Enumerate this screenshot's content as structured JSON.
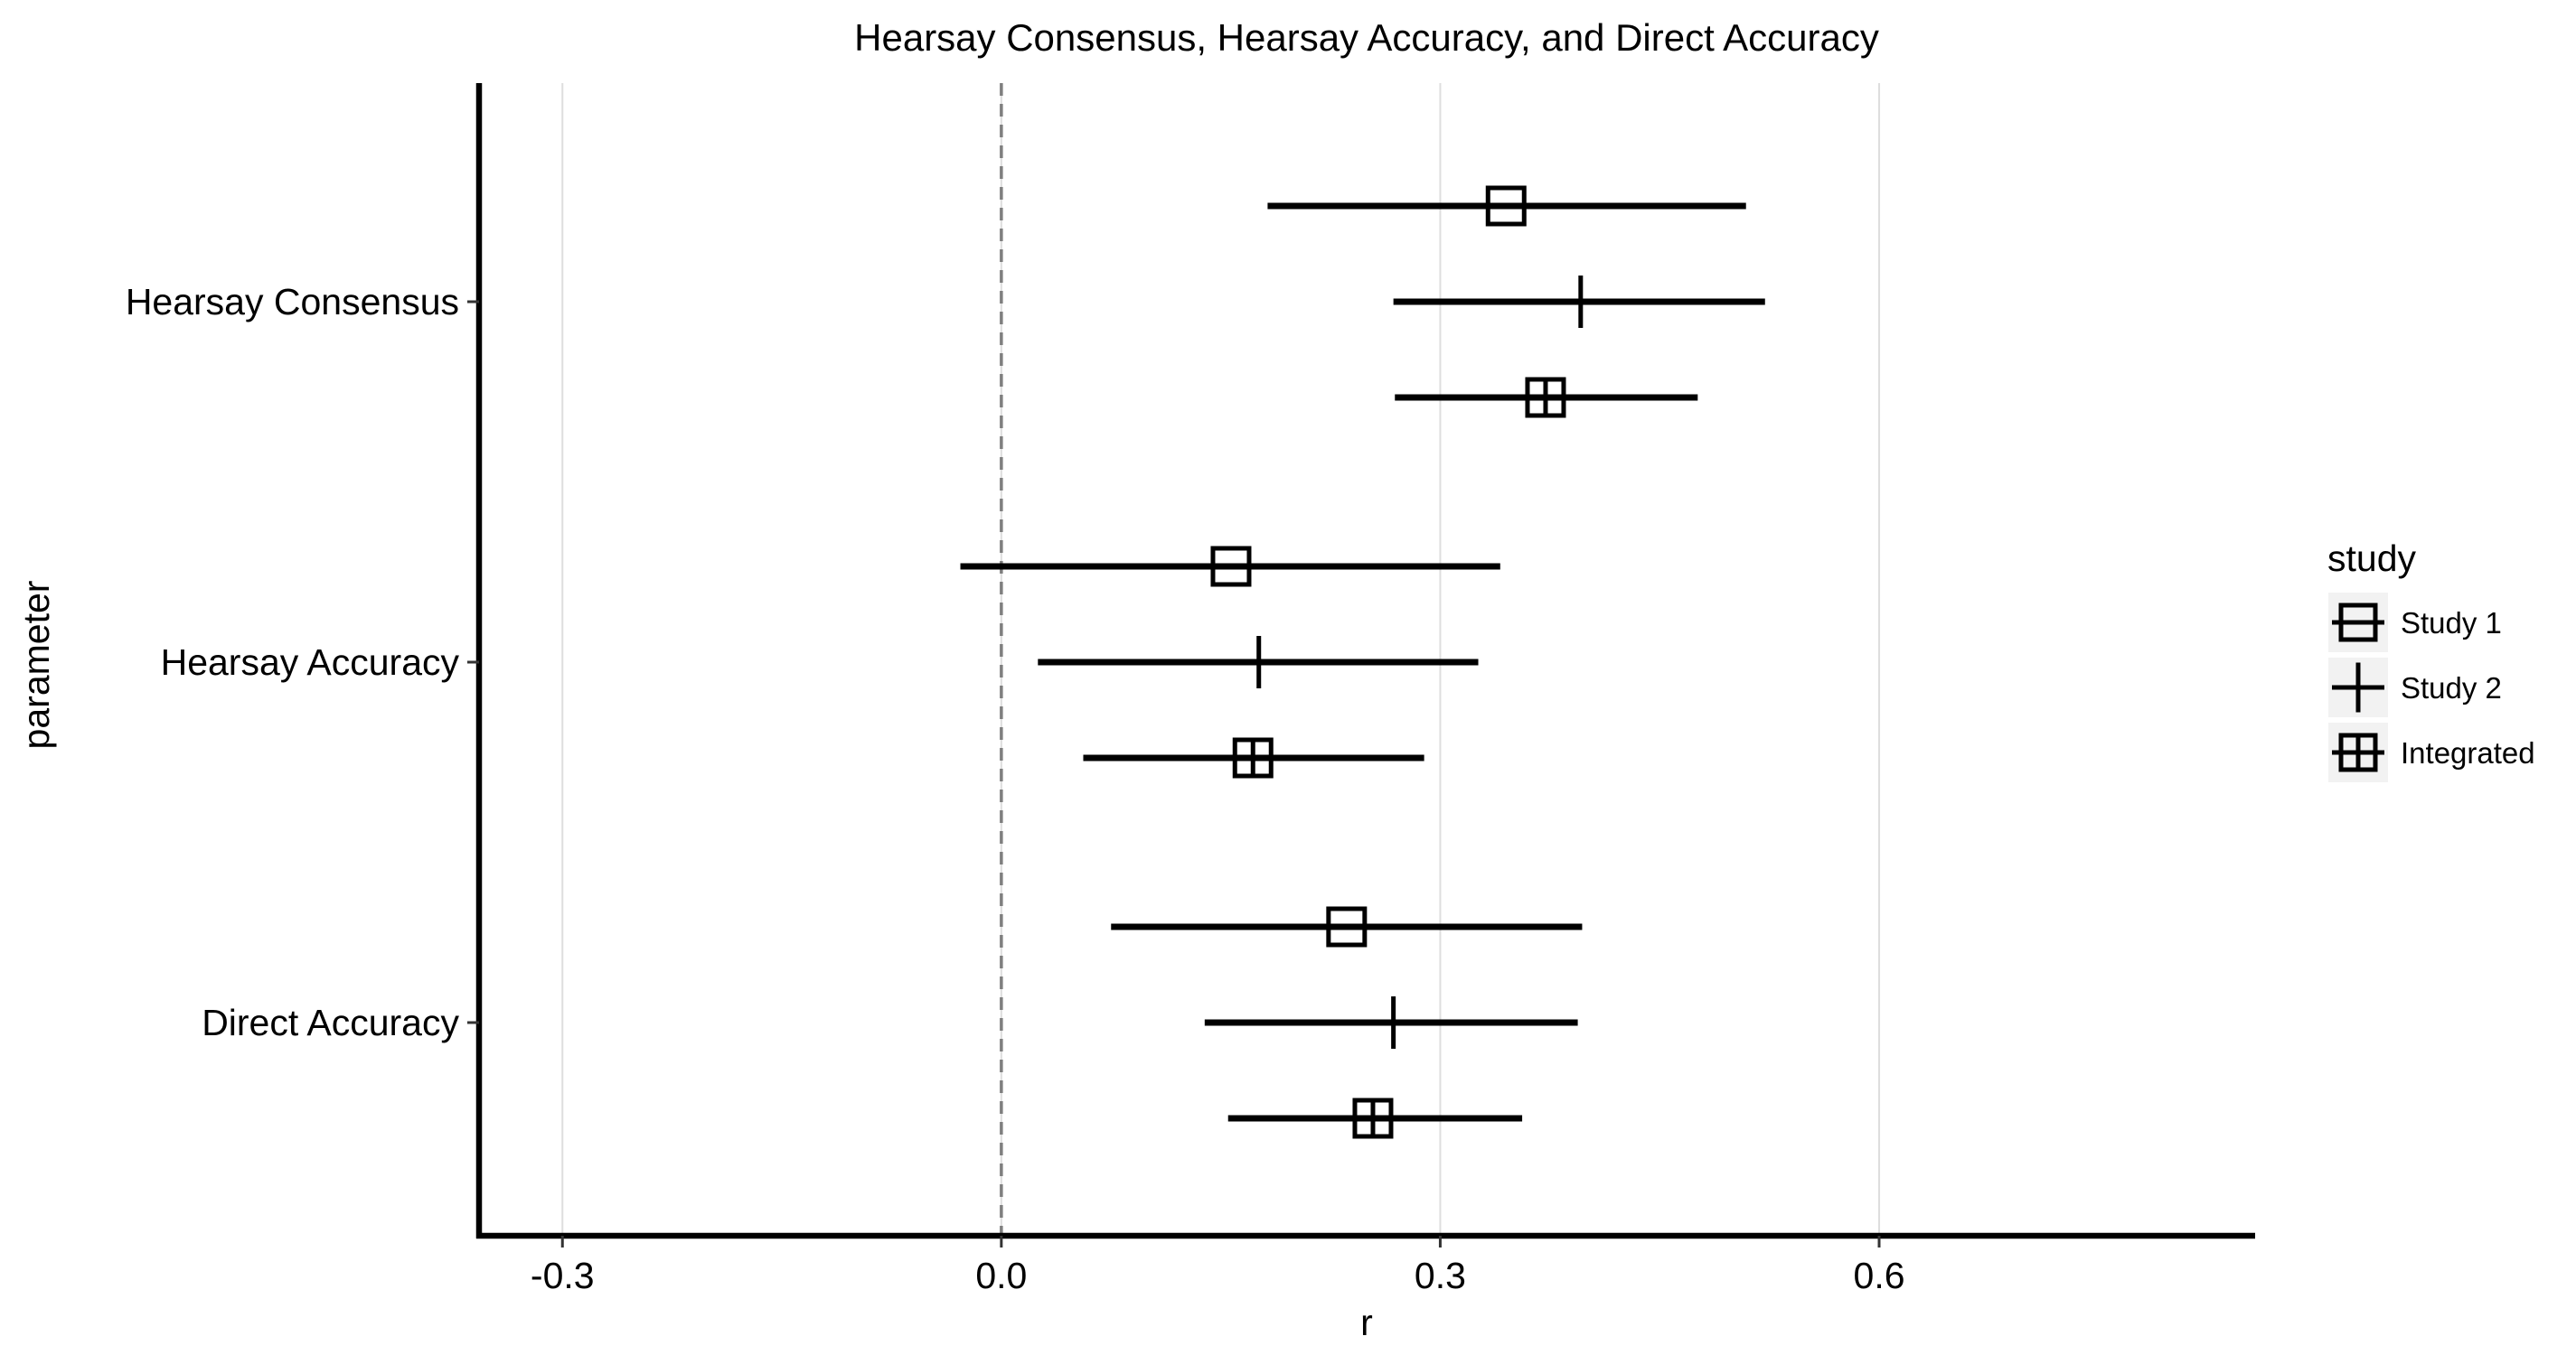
{
  "chart_data": {
    "type": "scatter",
    "subtype": "forest-plot",
    "title": "Hearsay Consensus, Hearsay Accuracy, and Direct Accuracy",
    "xlabel": "r",
    "ylabel": "parameter",
    "xlim": [
      -0.357,
      0.857
    ],
    "x_ticks": [
      -0.3,
      0.0,
      0.3,
      0.6
    ],
    "x_tick_labels": [
      "-0.3",
      "0.0",
      "0.3",
      "0.6"
    ],
    "categories": [
      "Hearsay Consensus",
      "Hearsay Accuracy",
      "Direct Accuracy"
    ],
    "reference_line": {
      "x": 0,
      "style": "dashed"
    },
    "grid": {
      "vertical_major": true,
      "horizontal": false
    },
    "legend": {
      "title": "study",
      "position": "right",
      "entries": [
        "Study 1",
        "Study 2",
        "Integrated"
      ]
    },
    "series": [
      {
        "name": "Study 1",
        "marker": "square-open",
        "points": [
          {
            "category": "Hearsay Consensus",
            "estimate": 0.345,
            "lower": 0.182,
            "upper": 0.509
          },
          {
            "category": "Hearsay Accuracy",
            "estimate": 0.157,
            "lower": -0.028,
            "upper": 0.341
          },
          {
            "category": "Direct Accuracy",
            "estimate": 0.236,
            "lower": 0.075,
            "upper": 0.397
          }
        ]
      },
      {
        "name": "Study 2",
        "marker": "vertical-line",
        "points": [
          {
            "category": "Hearsay Consensus",
            "estimate": 0.396,
            "lower": 0.268,
            "upper": 0.522
          },
          {
            "category": "Hearsay Accuracy",
            "estimate": 0.176,
            "lower": 0.025,
            "upper": 0.326
          },
          {
            "category": "Direct Accuracy",
            "estimate": 0.268,
            "lower": 0.139,
            "upper": 0.394
          }
        ]
      },
      {
        "name": "Integrated",
        "marker": "square-cross",
        "points": [
          {
            "category": "Hearsay Consensus",
            "estimate": 0.372,
            "lower": 0.269,
            "upper": 0.476
          },
          {
            "category": "Hearsay Accuracy",
            "estimate": 0.172,
            "lower": 0.056,
            "upper": 0.289
          },
          {
            "category": "Direct Accuracy",
            "estimate": 0.254,
            "lower": 0.155,
            "upper": 0.356
          }
        ]
      }
    ],
    "colors": {
      "marks": "#000000",
      "gridline": "#dedede",
      "reference": "#7f7f7f",
      "legend_key_bg": "#f2f2f2"
    }
  }
}
